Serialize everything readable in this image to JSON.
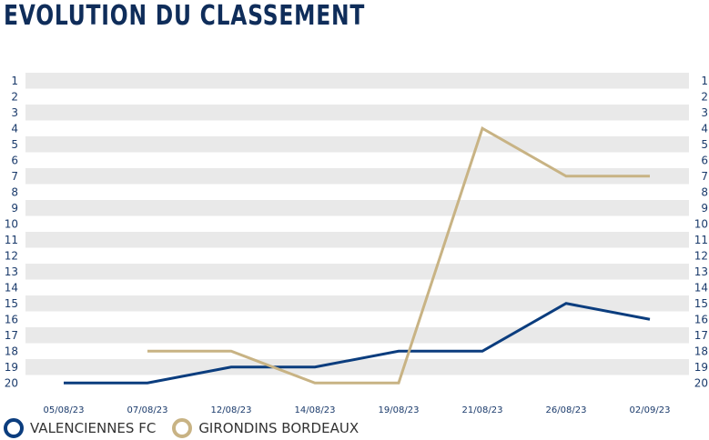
{
  "chart_data": {
    "type": "line",
    "title": "EVOLUTION DU CLASSEMENT",
    "categories": [
      "05/08/23",
      "07/08/23",
      "12/08/23",
      "14/08/23",
      "19/08/23",
      "21/08/23",
      "26/08/23",
      "02/09/23"
    ],
    "y_ticks": [
      "1",
      "2",
      "3",
      "4",
      "5",
      "6",
      "7",
      "8",
      "9",
      "10",
      "11",
      "12",
      "13",
      "14",
      "15",
      "16",
      "17",
      "18",
      "19",
      "20"
    ],
    "ylim": [
      1,
      20
    ],
    "y_inverted": true,
    "grid": "alternating horizontal bands",
    "legend_position": "bottom-left",
    "series": [
      {
        "name": "VALENCIENNES FC",
        "color": "#0b3d7e",
        "values": [
          20,
          20,
          19,
          19,
          18,
          18,
          15,
          16
        ]
      },
      {
        "name": "GIRONDINS BORDEAUX",
        "color": "#c8b384",
        "values": [
          null,
          18,
          18,
          20,
          20,
          4,
          7,
          7
        ]
      }
    ]
  },
  "colors": {
    "title": "#0f2d5a",
    "band": "#e9e9e9",
    "axis_text": "#1a3a6b"
  }
}
